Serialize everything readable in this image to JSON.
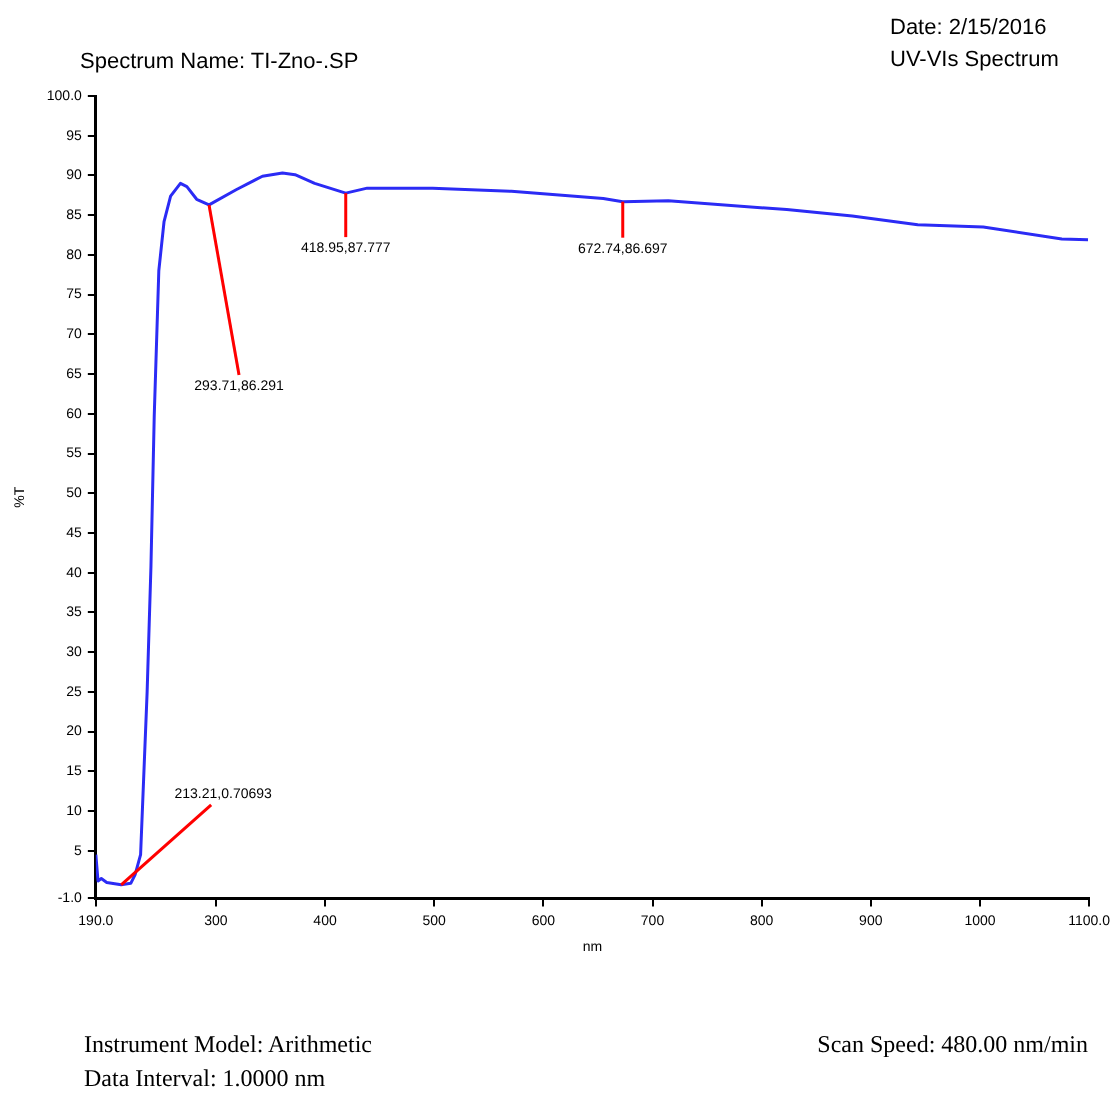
{
  "chart_data": {
    "type": "line",
    "title": "Spectrum Name: TI-Zno-.SP",
    "xlabel": "nm",
    "ylabel": "%T",
    "x": [
      190,
      192,
      195,
      200,
      213.21,
      222,
      226,
      231,
      237,
      240.5,
      243.5,
      247.7,
      252.5,
      258.5,
      267.5,
      273.4,
      282.4,
      293.71,
      318.5,
      342.6,
      361,
      372.5,
      390.5,
      418.95,
      438.6,
      474.7,
      498.6,
      570.7,
      654.9,
      672.74,
      714.5,
      823,
      883,
      943,
      1003,
      1075,
      1099
    ],
    "series": [
      {
        "color": "#2b2bf5",
        "values": [
          4.5,
          1.2,
          1.5,
          1.0,
          0.70693,
          0.9,
          2,
          4.5,
          25,
          40.8,
          59.7,
          78,
          84.2,
          87.4,
          89.0,
          88.6,
          87,
          86.291,
          88.2,
          89.9,
          90.3,
          90.1,
          89.0,
          87.777,
          88.4,
          88.4,
          88.4,
          88.0,
          87.1,
          86.697,
          86.8,
          85.7,
          84.9,
          83.8,
          83.5,
          82,
          81.9
        ]
      }
    ],
    "xlim": [
      190,
      1100
    ],
    "ylim": [
      -1,
      100
    ],
    "xticks": [
      {
        "value": 190,
        "label": "190.0"
      },
      300,
      400,
      500,
      600,
      700,
      800,
      900,
      1000,
      {
        "value": 1100,
        "label": "1100.0"
      }
    ],
    "yticks": [
      {
        "value": -1,
        "label": "-1.0"
      },
      5,
      10,
      15,
      20,
      25,
      30,
      35,
      40,
      45,
      50,
      55,
      60,
      65,
      70,
      75,
      80,
      85,
      90,
      95,
      {
        "value": 100,
        "label": "100.0"
      }
    ],
    "grid": false,
    "legend": false,
    "marker": "none",
    "line_style": "solid",
    "annotations": [
      {
        "text": "213.21,0.70693",
        "x": 213.21,
        "y": 0.70693
      },
      {
        "text": "293.71,86.291",
        "x": 293.71,
        "y": 86.291
      },
      {
        "text": "418.95,87.777",
        "x": 418.95,
        "y": 87.777
      },
      {
        "text": "672.74,86.697",
        "x": 672.74,
        "y": 86.697
      },
      "Date: 2/15/2016",
      "UV-VIs Spectrum",
      "Instrument Model: Arithmetic",
      "Data Interval: 1.0000 nm",
      "Scan Speed: 480.00 nm/min"
    ]
  }
}
